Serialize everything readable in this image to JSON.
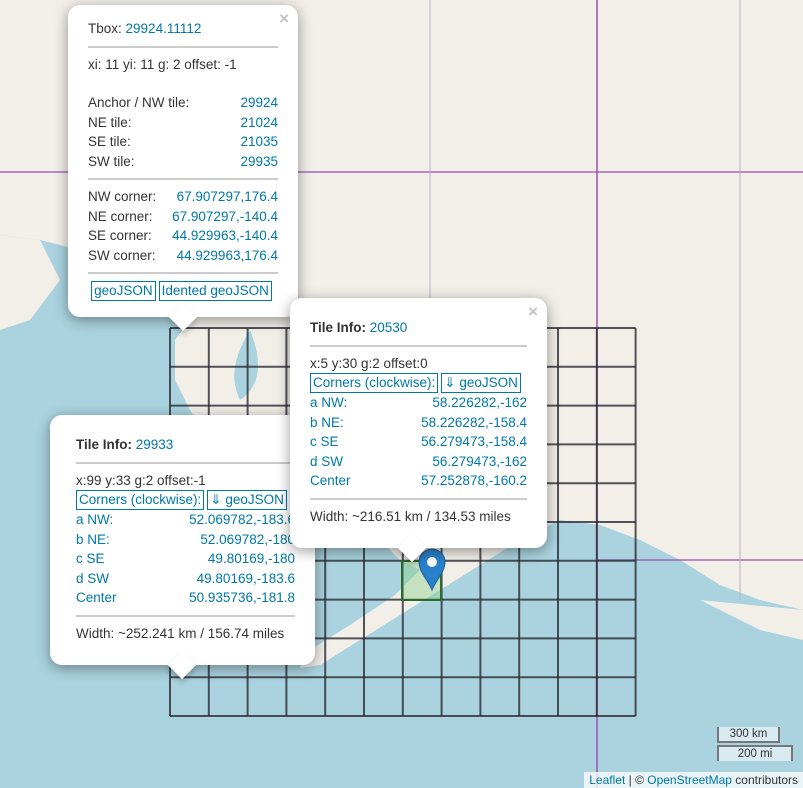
{
  "colors": {
    "ocean": "#aad3df",
    "land": "#f2efe9",
    "grid": "#2b2b33",
    "boundary": "#9b4fb0",
    "link": "#0078a8",
    "marker": "#2a81cb"
  },
  "popup_tbox": {
    "label": "Tbox:",
    "id": "29924.11112",
    "indices": "xi: 11 yi: 11 g: 2 offset: -1",
    "tiles": [
      {
        "label": "Anchor / NW tile:",
        "value": "29924"
      },
      {
        "label": "NE tile:",
        "value": "21024"
      },
      {
        "label": "SE tile:",
        "value": "21035"
      },
      {
        "label": "SW tile:",
        "value": "29935"
      }
    ],
    "corners": [
      {
        "label": "NW corner:",
        "value": "67.907297,176.4"
      },
      {
        "label": "NE corner:",
        "value": "67.907297,-140.4"
      },
      {
        "label": "SE corner:",
        "value": "44.929963,-140.4"
      },
      {
        "label": "SW corner:",
        "value": "44.929963,176.4"
      }
    ],
    "buttons": [
      "geoJSON",
      "Idented geoJSON"
    ],
    "close": "×"
  },
  "popup_tile_20530": {
    "label": "Tile Info:",
    "id": "20530",
    "indices": "x:5 y:30 g:2 offset:0",
    "corners_button": "Corners (clockwise):",
    "geojson_button": "⇓ geoJSON",
    "corners": [
      {
        "label": "a NW:",
        "value": "58.226282,-162"
      },
      {
        "label": "b NE:",
        "value": "58.226282,-158.4"
      },
      {
        "label": "c SE",
        "value": "56.279473,-158.4"
      },
      {
        "label": "d SW",
        "value": "56.279473,-162"
      },
      {
        "label": "Center",
        "value": "57.252878,-160.2"
      }
    ],
    "width": "Width: ~216.51 km / 134.53 miles",
    "close": "×"
  },
  "popup_tile_29933": {
    "label": "Tile Info:",
    "id": "29933",
    "indices": "x:99 y:33 g:2 offset:-1",
    "corners_button": "Corners (clockwise):",
    "geojson_button": "⇓ geoJSON",
    "corners": [
      {
        "label": "a NW:",
        "value": "52.069782,-183.6"
      },
      {
        "label": "b NE:",
        "value": "52.069782,-180"
      },
      {
        "label": "c SE",
        "value": "49.80169,-180"
      },
      {
        "label": "d SW",
        "value": "49.80169,-183.6"
      },
      {
        "label": "Center",
        "value": "50.935736,-181.8"
      }
    ],
    "width": "Width: ~252.241 km / 156.74 miles"
  },
  "scale": {
    "metric": "300 km",
    "imperial": "200 mi"
  },
  "attribution": {
    "leaflet": "Leaflet",
    "sep": " | © ",
    "osm": "OpenStreetMap",
    "suffix": " contributors"
  }
}
